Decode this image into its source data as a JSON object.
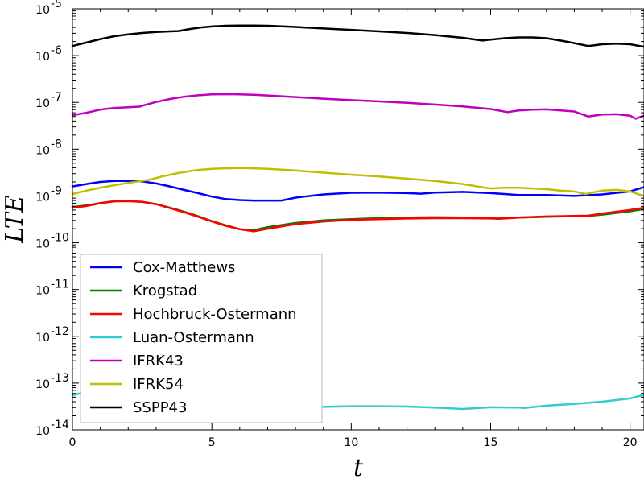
{
  "chart_data": {
    "type": "line",
    "title": "",
    "xlabel": "t",
    "ylabel": "LTE",
    "xlim": [
      0,
      20.5
    ],
    "ylim_exp": [
      -14,
      -5
    ],
    "yscale": "log",
    "x_ticks": [
      0,
      5,
      10,
      15,
      20
    ],
    "y_ticks_exp": [
      -14,
      -13,
      -12,
      -11,
      -10,
      -9,
      -8,
      -7,
      -6,
      -5
    ],
    "legend_position": "lower-left",
    "grid": false,
    "series": [
      {
        "name": "Cox-Matthews",
        "color": "#0000ff",
        "x": [
          0,
          0.5,
          1,
          1.5,
          2,
          2.5,
          3,
          3.5,
          4,
          4.5,
          5,
          5.5,
          6,
          6.5,
          7,
          7.5,
          8,
          9,
          10,
          11,
          12,
          12.5,
          13,
          14,
          15,
          16,
          17,
          18,
          19,
          20,
          20.5
        ],
        "y": [
          1.6e-09,
          1.8e-09,
          2e-09,
          2.1e-09,
          2.1e-09,
          2.05e-09,
          1.85e-09,
          1.6e-09,
          1.35e-09,
          1.15e-09,
          9.7e-10,
          8.6e-10,
          8.2e-10,
          8e-10,
          8e-10,
          8e-10,
          9.2e-10,
          1.08e-09,
          1.17e-09,
          1.18e-09,
          1.15e-09,
          1.12e-09,
          1.18e-09,
          1.22e-09,
          1.15e-09,
          1.05e-09,
          1.05e-09,
          1e-09,
          1.08e-09,
          1.25e-09,
          1.55e-09
        ]
      },
      {
        "name": "Krogstad",
        "color": "#008000",
        "x": [
          0,
          0.5,
          1,
          1.5,
          2,
          2.5,
          3,
          3.5,
          4,
          4.5,
          5,
          5.5,
          6,
          6.5,
          7,
          8,
          9,
          10,
          11,
          12,
          13,
          14,
          15,
          15.3,
          16,
          17,
          18,
          18.5,
          19,
          20,
          20.5
        ],
        "y": [
          5.8e-10,
          6.3e-10,
          7e-10,
          7.7e-10,
          7.8e-10,
          7.5e-10,
          6.7e-10,
          5.6e-10,
          4.6e-10,
          3.7e-10,
          2.9e-10,
          2.35e-10,
          1.95e-10,
          1.85e-10,
          2.15e-10,
          2.65e-10,
          3e-10,
          3.2e-10,
          3.35e-10,
          3.45e-10,
          3.5e-10,
          3.45e-10,
          3.35e-10,
          3.3e-10,
          3.45e-10,
          3.6e-10,
          3.7e-10,
          3.75e-10,
          4e-10,
          4.7e-10,
          5.3e-10
        ]
      },
      {
        "name": "Hochbruck-Ostermann",
        "color": "#ff0000",
        "x": [
          0,
          0.5,
          1,
          1.5,
          2,
          2.5,
          3,
          3.5,
          4,
          4.5,
          5,
          5.5,
          6,
          6.5,
          7,
          8,
          9,
          10,
          11,
          12,
          13,
          14,
          15,
          15.3,
          16,
          17,
          18,
          18.5,
          19,
          20,
          20.5
        ],
        "y": [
          5.6e-10,
          6.1e-10,
          7e-10,
          7.7e-10,
          7.8e-10,
          7.5e-10,
          6.7e-10,
          5.5e-10,
          4.5e-10,
          3.6e-10,
          2.85e-10,
          2.3e-10,
          1.95e-10,
          1.75e-10,
          2e-10,
          2.5e-10,
          2.85e-10,
          3.1e-10,
          3.2e-10,
          3.3e-10,
          3.35e-10,
          3.35e-10,
          3.3e-10,
          3.25e-10,
          3.45e-10,
          3.65e-10,
          3.75e-10,
          3.8e-10,
          4.2e-10,
          5e-10,
          5.6e-10
        ]
      },
      {
        "name": "Luan-Ostermann",
        "color": "#33cccc",
        "x": [
          0,
          0.5,
          1,
          1.5,
          2,
          2.5,
          3,
          3.5,
          4,
          4.5,
          5,
          5.5,
          6,
          6.5,
          7,
          7.5,
          8,
          9,
          10,
          11,
          12,
          13,
          13.5,
          14,
          15,
          16,
          16.2,
          17,
          18,
          19,
          20,
          20.5
        ],
        "y": [
          5.5e-14,
          6.5e-14,
          8e-14,
          9.5e-14,
          1e-13,
          9.8e-14,
          9e-14,
          7.5e-14,
          6e-14,
          4.5e-14,
          3.6e-14,
          2.9e-14,
          2.5e-14,
          2.3e-14,
          2.6e-14,
          2.8e-14,
          2.95e-14,
          3.1e-14,
          3.2e-14,
          3.2e-14,
          3.15e-14,
          3e-14,
          2.9e-14,
          2.8e-14,
          3.05e-14,
          3e-14,
          2.95e-14,
          3.3e-14,
          3.6e-14,
          4e-14,
          4.7e-14,
          5.6e-14
        ]
      },
      {
        "name": "IFRK43",
        "color": "#bf00bf",
        "x": [
          0,
          0.5,
          1,
          1.5,
          2,
          2.4,
          2.6,
          3,
          3.5,
          4,
          4.5,
          5,
          5.5,
          6,
          6.5,
          7,
          8,
          9,
          10,
          11,
          12,
          13,
          14,
          15,
          15.6,
          16,
          16.5,
          17,
          18,
          18.5,
          19,
          19.5,
          20,
          20.2,
          20.5
        ],
        "y": [
          5.3e-08,
          6e-08,
          7e-08,
          7.6e-08,
          7.9e-08,
          8.1e-08,
          8.8e-08,
          1.02e-07,
          1.18e-07,
          1.32e-07,
          1.42e-07,
          1.48e-07,
          1.5e-07,
          1.49e-07,
          1.46e-07,
          1.41e-07,
          1.3e-07,
          1.2e-07,
          1.12e-07,
          1.05e-07,
          9.8e-08,
          9e-08,
          8.2e-08,
          7.2e-08,
          6.2e-08,
          6.7e-08,
          7e-08,
          7.1e-08,
          6.4e-08,
          5e-08,
          5.5e-08,
          5.6e-08,
          5.2e-08,
          4.5e-08,
          5.2e-08
        ]
      },
      {
        "name": "IFRK54",
        "color": "#bfbf00",
        "x": [
          0,
          0.5,
          1,
          1.5,
          2,
          2.5,
          2.8,
          3.2,
          3.8,
          4.5,
          5,
          5.5,
          6,
          6.5,
          7,
          8,
          9,
          10,
          11,
          12,
          13,
          14,
          14.8,
          15,
          15.5,
          16,
          17,
          17.5,
          18,
          18.4,
          18.7,
          19,
          19.5,
          20,
          20.5
        ],
        "y": [
          1.1e-09,
          1.3e-09,
          1.5e-09,
          1.7e-09,
          1.9e-09,
          2.1e-09,
          2.25e-09,
          2.6e-09,
          3.1e-09,
          3.6e-09,
          3.8e-09,
          3.9e-09,
          3.95e-09,
          3.9e-09,
          3.8e-09,
          3.5e-09,
          3.15e-09,
          2.85e-09,
          2.6e-09,
          2.35e-09,
          2.1e-09,
          1.8e-09,
          1.5e-09,
          1.45e-09,
          1.5e-09,
          1.5e-09,
          1.4e-09,
          1.3e-09,
          1.25e-09,
          1.1e-09,
          1.2e-09,
          1.3e-09,
          1.35e-09,
          1.25e-09,
          1e-09
        ]
      },
      {
        "name": "SSPP43",
        "color": "#000000",
        "x": [
          0,
          0.5,
          1,
          1.5,
          2,
          2.5,
          3,
          3.5,
          3.8,
          4.2,
          4.6,
          5,
          5.5,
          6,
          6.5,
          7,
          8,
          9,
          10,
          11,
          12,
          13,
          14,
          14.7,
          15,
          15.5,
          16,
          16.5,
          17,
          17.5,
          18,
          18.5,
          19,
          19.5,
          20,
          20.5
        ],
        "y": [
          1.6e-06,
          1.9e-06,
          2.25e-06,
          2.6e-06,
          2.85e-06,
          3.05e-06,
          3.2e-06,
          3.3e-06,
          3.35e-06,
          3.7e-06,
          4e-06,
          4.2e-06,
          4.35e-06,
          4.4e-06,
          4.4e-06,
          4.35e-06,
          4.1e-06,
          3.8e-06,
          3.55e-06,
          3.3e-06,
          3.05e-06,
          2.75e-06,
          2.4e-06,
          2.1e-06,
          2.2e-06,
          2.35e-06,
          2.45e-06,
          2.45e-06,
          2.35e-06,
          2.1e-06,
          1.85e-06,
          1.6e-06,
          1.75e-06,
          1.8e-06,
          1.75e-06,
          1.55e-06
        ]
      }
    ]
  }
}
